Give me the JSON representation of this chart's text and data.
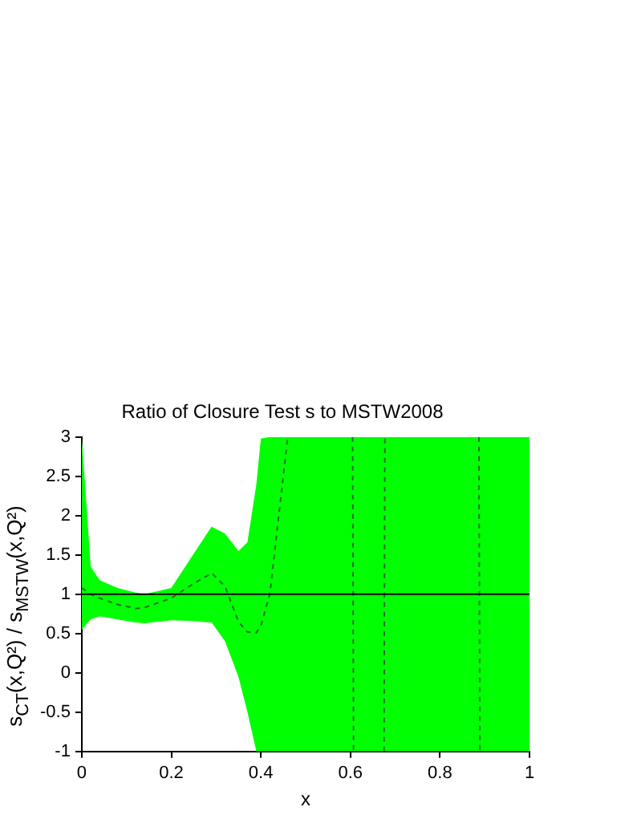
{
  "chart_data": {
    "type": "line",
    "title": "Ratio of Closure Test s to MSTW2008",
    "xlabel": "x",
    "ylabel": "s$_{CT}$(x,Q²) / s$_{MSTW}$(x,Q²)",
    "xlim": [
      0,
      1
    ],
    "xticks": [
      0,
      0.2,
      0.4,
      0.6,
      0.8,
      1
    ],
    "ylim": [
      -1,
      3
    ],
    "yticks": [
      -1,
      -0.5,
      0,
      0.5,
      1,
      1.5,
      2,
      2.5,
      3
    ],
    "grid": false,
    "legend": false,
    "marker": "none",
    "line_style": "dashed",
    "ref_lines": [
      {
        "axis": "y",
        "value": 1,
        "color": "#000000"
      }
    ],
    "series": [
      {
        "color": "#2e6b2e",
        "x": [
          0,
          0.02,
          0.04,
          0.08,
          0.12,
          0.14,
          0.2,
          0.24,
          0.29,
          0.32,
          0.35,
          0.37,
          0.39,
          0.4,
          0.42,
          0.46,
          0.5,
          0.605,
          0.607,
          0.64,
          0.675,
          0.677,
          0.7,
          0.887,
          0.889,
          1
        ],
        "values": [
          1.08,
          1.0,
          0.95,
          0.87,
          0.82,
          0.83,
          0.95,
          1.1,
          1.27,
          1.1,
          0.65,
          0.52,
          0.51,
          0.6,
          1.0,
          3,
          null,
          3,
          -1,
          null,
          -1,
          3,
          null,
          3,
          -1,
          null
        ],
        "upper": [
          3,
          1.35,
          1.18,
          1.08,
          1.02,
          1.0,
          1.08,
          1.43,
          1.86,
          1.77,
          1.55,
          1.66,
          2.4,
          2.98,
          3,
          3,
          3,
          3,
          3,
          3,
          3,
          3,
          3,
          3,
          3,
          3
        ],
        "lower": [
          0.55,
          0.68,
          0.72,
          0.68,
          0.64,
          0.63,
          0.67,
          0.66,
          0.64,
          0.4,
          -0.05,
          -0.5,
          -1,
          -1,
          -1,
          -1,
          -1,
          -1,
          -1,
          -1,
          -1,
          -1,
          -1,
          -1,
          -1,
          -1
        ]
      }
    ]
  }
}
